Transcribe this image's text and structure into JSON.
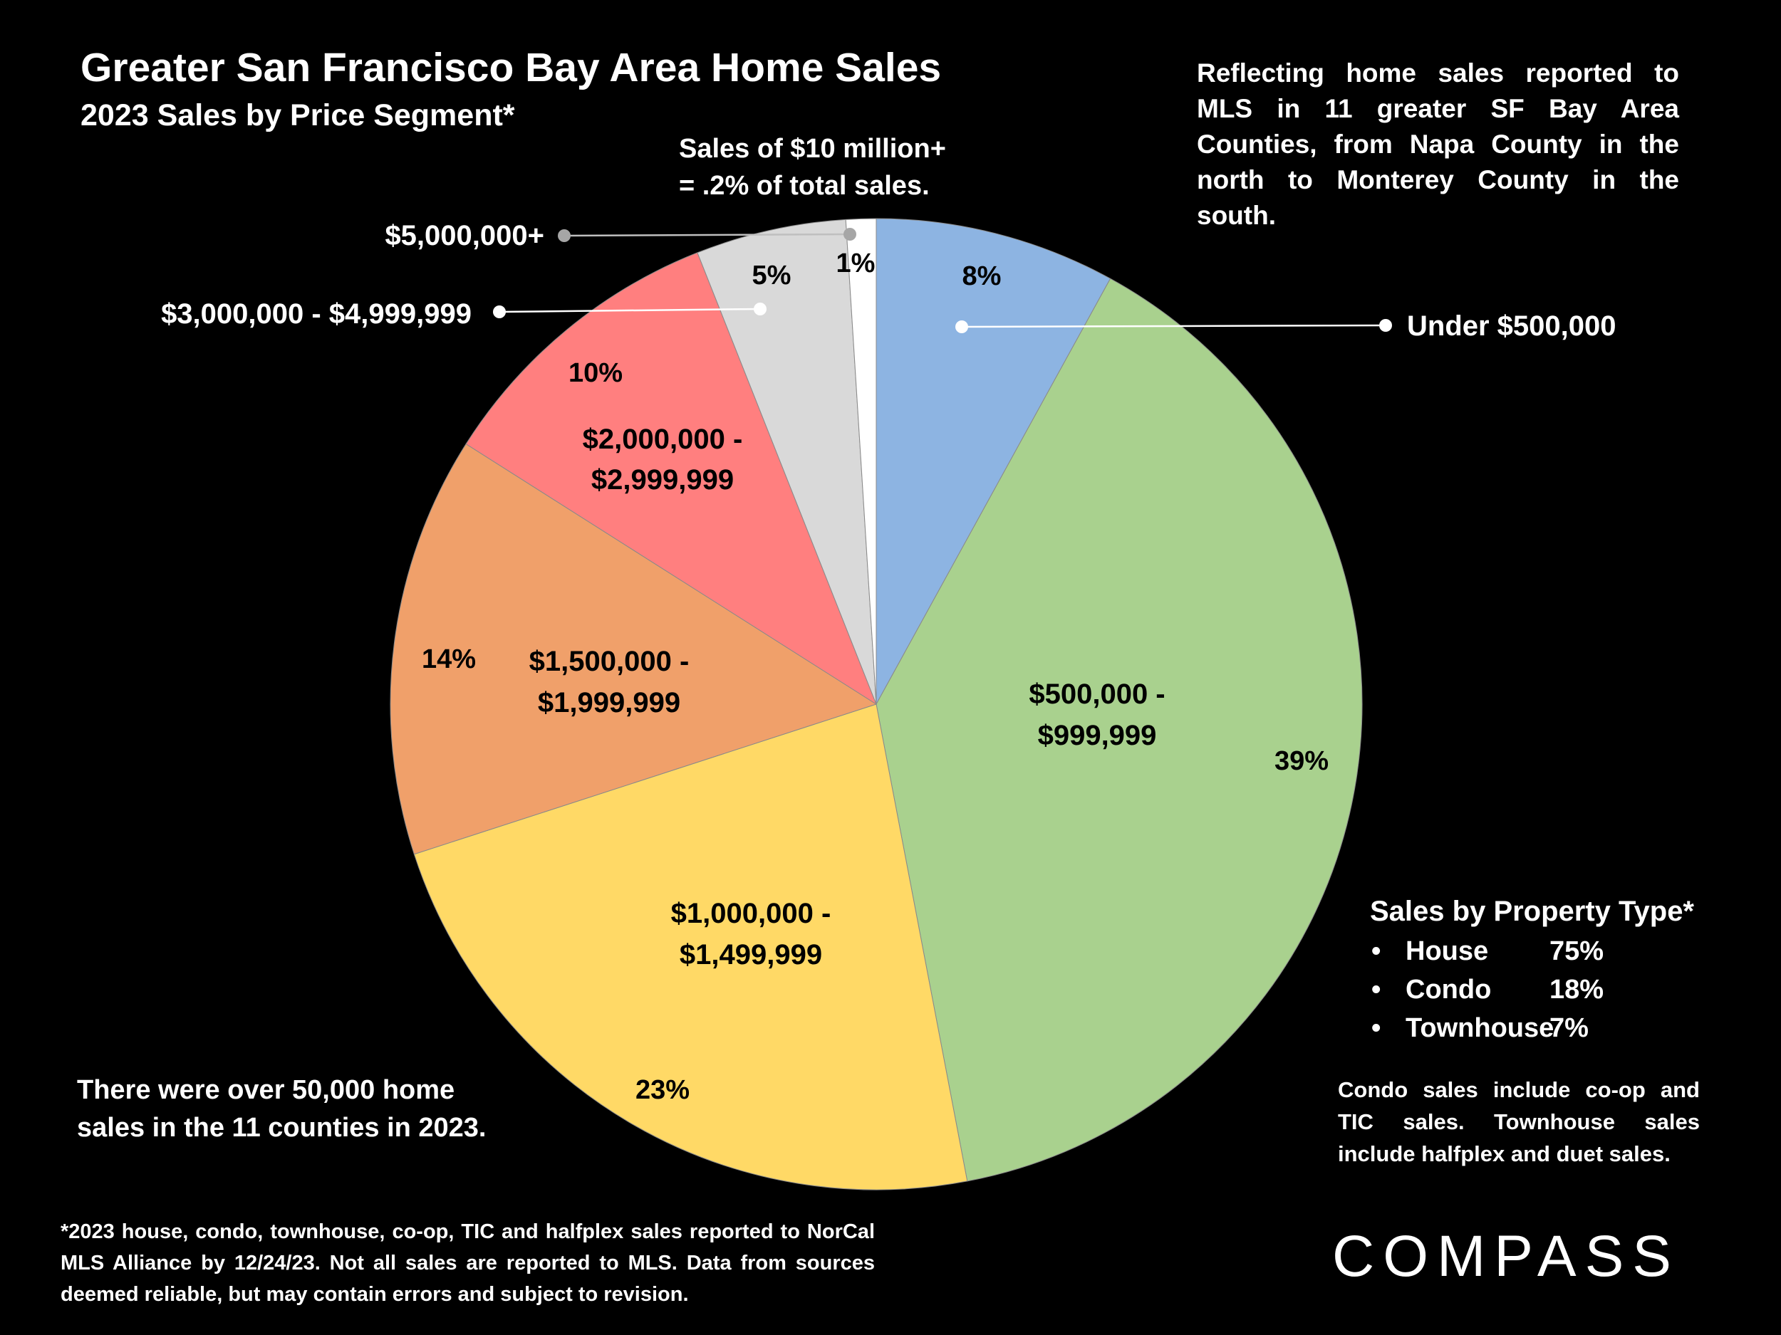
{
  "title": "Greater San Francisco Bay Area Home Sales",
  "subtitle": "2023 Sales by Price Segment*",
  "note_top_right": "Reflecting home sales reported to MLS in 11 greater SF Bay Area Counties, from Napa County in the north to Monterey County in the south.",
  "note_10m_line1": "Sales of $10 million+",
  "note_10m_line2": "= .2% of total sales.",
  "note_total_line1": "There were over 50,000 home",
  "note_total_line2": "sales in the 11 counties in 2023.",
  "footnote": "*2023 house, condo, townhouse, co-op, TIC and halfplex sales reported to NorCal MLS Alliance by 12/24/23. Not all sales are reported to MLS. Data from sources deemed reliable, but may contain errors and subject to revision.",
  "property_type": {
    "title": "Sales by Property Type*",
    "bullet": "•",
    "items": [
      {
        "name": "House",
        "value": "75%"
      },
      {
        "name": "Condo",
        "value": "18%"
      },
      {
        "name": "Townhouse",
        "value": "7%"
      }
    ]
  },
  "condo_note": "Condo sales include co-op and TIC sales. Townhouse sales include halfplex and duet sales.",
  "logo": "COMPASS",
  "chart_data": {
    "type": "pie",
    "title": "Greater San Francisco Bay Area Home Sales",
    "subtitle": "2023 Sales by Price Segment*",
    "start_angle": "12 o'clock",
    "direction": "clockwise",
    "slices": [
      {
        "label": "Under $500,000",
        "label_lines": [
          "Under $500,000"
        ],
        "value": 8,
        "value_label": "8%",
        "color": "#8DB4E2"
      },
      {
        "label": "$500,000 - $999,999",
        "label_lines": [
          "$500,000 -",
          "$999,999"
        ],
        "value": 39,
        "value_label": "39%",
        "color": "#A9D18E"
      },
      {
        "label": "$1,000,000 - $1,499,999",
        "label_lines": [
          "$1,000,000 -",
          "$1,499,999"
        ],
        "value": 23,
        "value_label": "23%",
        "color": "#FFD966"
      },
      {
        "label": "$1,500,000 - $1,999,999",
        "label_lines": [
          "$1,500,000 -",
          "$1,999,999"
        ],
        "value": 14,
        "value_label": "14%",
        "color": "#F0A06A"
      },
      {
        "label": "$2,000,000 - $2,999,999",
        "label_lines": [
          "$2,000,000 -",
          "$2,999,999"
        ],
        "value": 10,
        "value_label": "10%",
        "color": "#FF7F7F"
      },
      {
        "label": "$3,000,000 - $4,999,999",
        "label_lines": [
          "$3,000,000 - $4,999,999"
        ],
        "value": 5,
        "value_label": "5%",
        "color": "#D9D9D9"
      },
      {
        "label": "$5,000,000+",
        "label_lines": [
          "$5,000,000+"
        ],
        "value": 1,
        "value_label": "1%",
        "color": "#FFFFFF"
      }
    ]
  }
}
